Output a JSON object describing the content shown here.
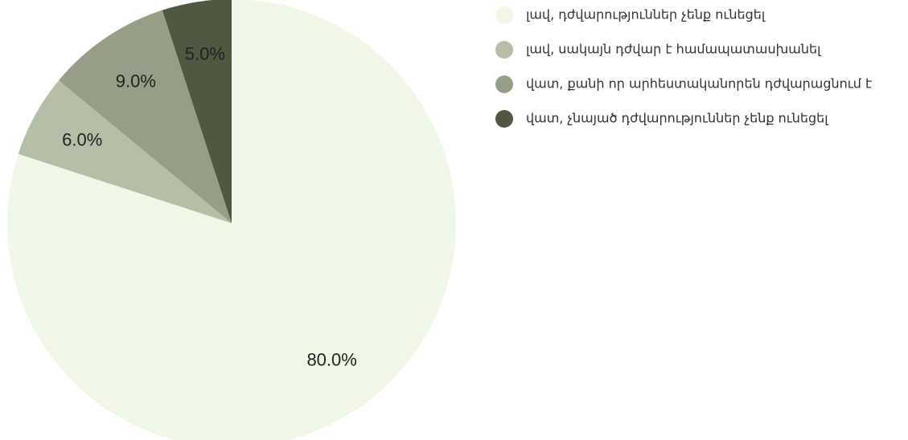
{
  "chart_data": {
    "type": "pie",
    "categories": [
      "լավ, դժվարություններ չենք ունեցել",
      "լավ, սակայն դժվար է համապատասխանել",
      "վատ, քանի որ արհեստականորեն դժվարացնում է",
      "վատ, չնայած դժվարություններ չենք ունեցել"
    ],
    "values": [
      80,
      6,
      9,
      5
    ],
    "value_labels": [
      "80.0%",
      "6.0%",
      "9.0%",
      "5.0%"
    ],
    "colors": [
      "#eff8e6",
      "#b5bfa8",
      "#959e87",
      "#4f5841"
    ],
    "legend": "right"
  }
}
